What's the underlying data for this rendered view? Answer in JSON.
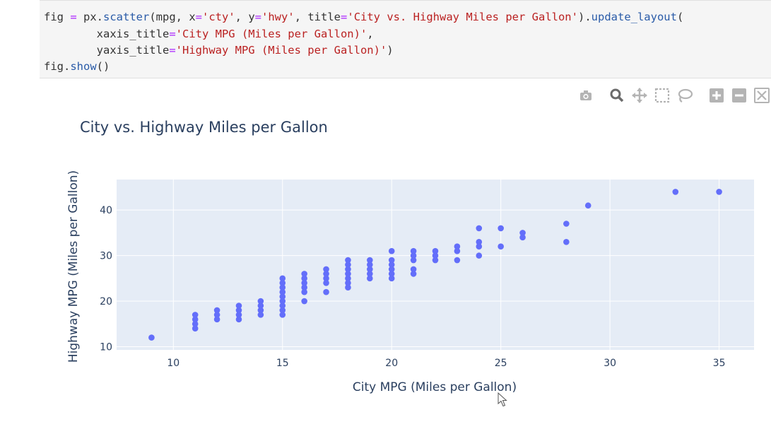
{
  "code": {
    "line1": [
      {
        "t": "fig ",
        "c": "plain"
      },
      {
        "t": "=",
        "c": "op"
      },
      {
        "t": " px.",
        "c": "plain"
      },
      {
        "t": "scatter",
        "c": "fn"
      },
      {
        "t": "(mpg, x",
        "c": "plain"
      },
      {
        "t": "=",
        "c": "op"
      },
      {
        "t": "'cty'",
        "c": "str"
      },
      {
        "t": ", y",
        "c": "plain"
      },
      {
        "t": "=",
        "c": "op"
      },
      {
        "t": "'hwy'",
        "c": "str"
      },
      {
        "t": ", title",
        "c": "plain"
      },
      {
        "t": "=",
        "c": "op"
      },
      {
        "t": "'City vs. Highway Miles per Gallon'",
        "c": "str"
      },
      {
        "t": ").",
        "c": "plain"
      },
      {
        "t": "update_layout",
        "c": "fn"
      },
      {
        "t": "(",
        "c": "plain"
      }
    ],
    "line2": [
      {
        "t": "        xaxis_title",
        "c": "plain"
      },
      {
        "t": "=",
        "c": "op"
      },
      {
        "t": "'City MPG (Miles per Gallon)'",
        "c": "str"
      },
      {
        "t": ",",
        "c": "plain"
      }
    ],
    "line3": [
      {
        "t": "        yaxis_title",
        "c": "plain"
      },
      {
        "t": "=",
        "c": "op"
      },
      {
        "t": "'Highway MPG (Miles per Gallon)'",
        "c": "str"
      },
      {
        "t": ")",
        "c": "plain"
      }
    ],
    "line4": [
      {
        "t": "fig.",
        "c": "plain"
      },
      {
        "t": "show",
        "c": "fn"
      },
      {
        "t": "()",
        "c": "plain"
      }
    ]
  },
  "modebar": {
    "icons": [
      "camera-icon",
      "zoom-icon",
      "pan-icon",
      "box-select-icon",
      "lasso-icon",
      "zoom-in-icon",
      "zoom-out-icon",
      "autoscale-icon"
    ],
    "icon_color": "#b4b4b4",
    "active_color": "#6b6b6b"
  },
  "chart_data": {
    "type": "scatter",
    "title": "City vs. Highway Miles per Gallon",
    "xlabel": "City MPG (Miles per Gallon)",
    "ylabel": "Highway MPG (Miles per Gallon)",
    "xlim": [
      7.4,
      36.6
    ],
    "ylim": [
      9.3,
      46.7
    ],
    "xticks": [
      10,
      15,
      20,
      25,
      30,
      35
    ],
    "yticks": [
      10,
      20,
      30,
      40
    ],
    "grid": true,
    "marker_color": "#636efa",
    "plot_bg": "#e5ecf6",
    "points": [
      [
        9,
        12
      ],
      [
        11,
        14
      ],
      [
        11,
        15
      ],
      [
        11,
        16
      ],
      [
        11,
        17
      ],
      [
        12,
        16
      ],
      [
        12,
        17
      ],
      [
        12,
        18
      ],
      [
        13,
        16
      ],
      [
        13,
        17
      ],
      [
        13,
        18
      ],
      [
        13,
        19
      ],
      [
        14,
        17
      ],
      [
        14,
        18
      ],
      [
        14,
        19
      ],
      [
        14,
        20
      ],
      [
        15,
        17
      ],
      [
        15,
        18
      ],
      [
        15,
        19
      ],
      [
        15,
        20
      ],
      [
        15,
        21
      ],
      [
        15,
        22
      ],
      [
        15,
        23
      ],
      [
        15,
        24
      ],
      [
        15,
        25
      ],
      [
        16,
        20
      ],
      [
        16,
        22
      ],
      [
        16,
        23
      ],
      [
        16,
        24
      ],
      [
        16,
        25
      ],
      [
        16,
        26
      ],
      [
        17,
        22
      ],
      [
        17,
        24
      ],
      [
        17,
        25
      ],
      [
        17,
        26
      ],
      [
        17,
        27
      ],
      [
        18,
        23
      ],
      [
        18,
        24
      ],
      [
        18,
        25
      ],
      [
        18,
        26
      ],
      [
        18,
        27
      ],
      [
        18,
        28
      ],
      [
        18,
        29
      ],
      [
        19,
        25
      ],
      [
        19,
        26
      ],
      [
        19,
        27
      ],
      [
        19,
        28
      ],
      [
        19,
        29
      ],
      [
        20,
        25
      ],
      [
        20,
        26
      ],
      [
        20,
        27
      ],
      [
        20,
        28
      ],
      [
        20,
        29
      ],
      [
        20,
        31
      ],
      [
        21,
        26
      ],
      [
        21,
        27
      ],
      [
        21,
        29
      ],
      [
        21,
        30
      ],
      [
        21,
        31
      ],
      [
        22,
        29
      ],
      [
        22,
        30
      ],
      [
        22,
        31
      ],
      [
        23,
        29
      ],
      [
        23,
        31
      ],
      [
        23,
        32
      ],
      [
        24,
        30
      ],
      [
        24,
        32
      ],
      [
        24,
        33
      ],
      [
        24,
        36
      ],
      [
        25,
        32
      ],
      [
        25,
        36
      ],
      [
        26,
        34
      ],
      [
        26,
        35
      ],
      [
        28,
        33
      ],
      [
        28,
        37
      ],
      [
        29,
        41
      ],
      [
        33,
        44
      ],
      [
        35,
        44
      ]
    ]
  }
}
